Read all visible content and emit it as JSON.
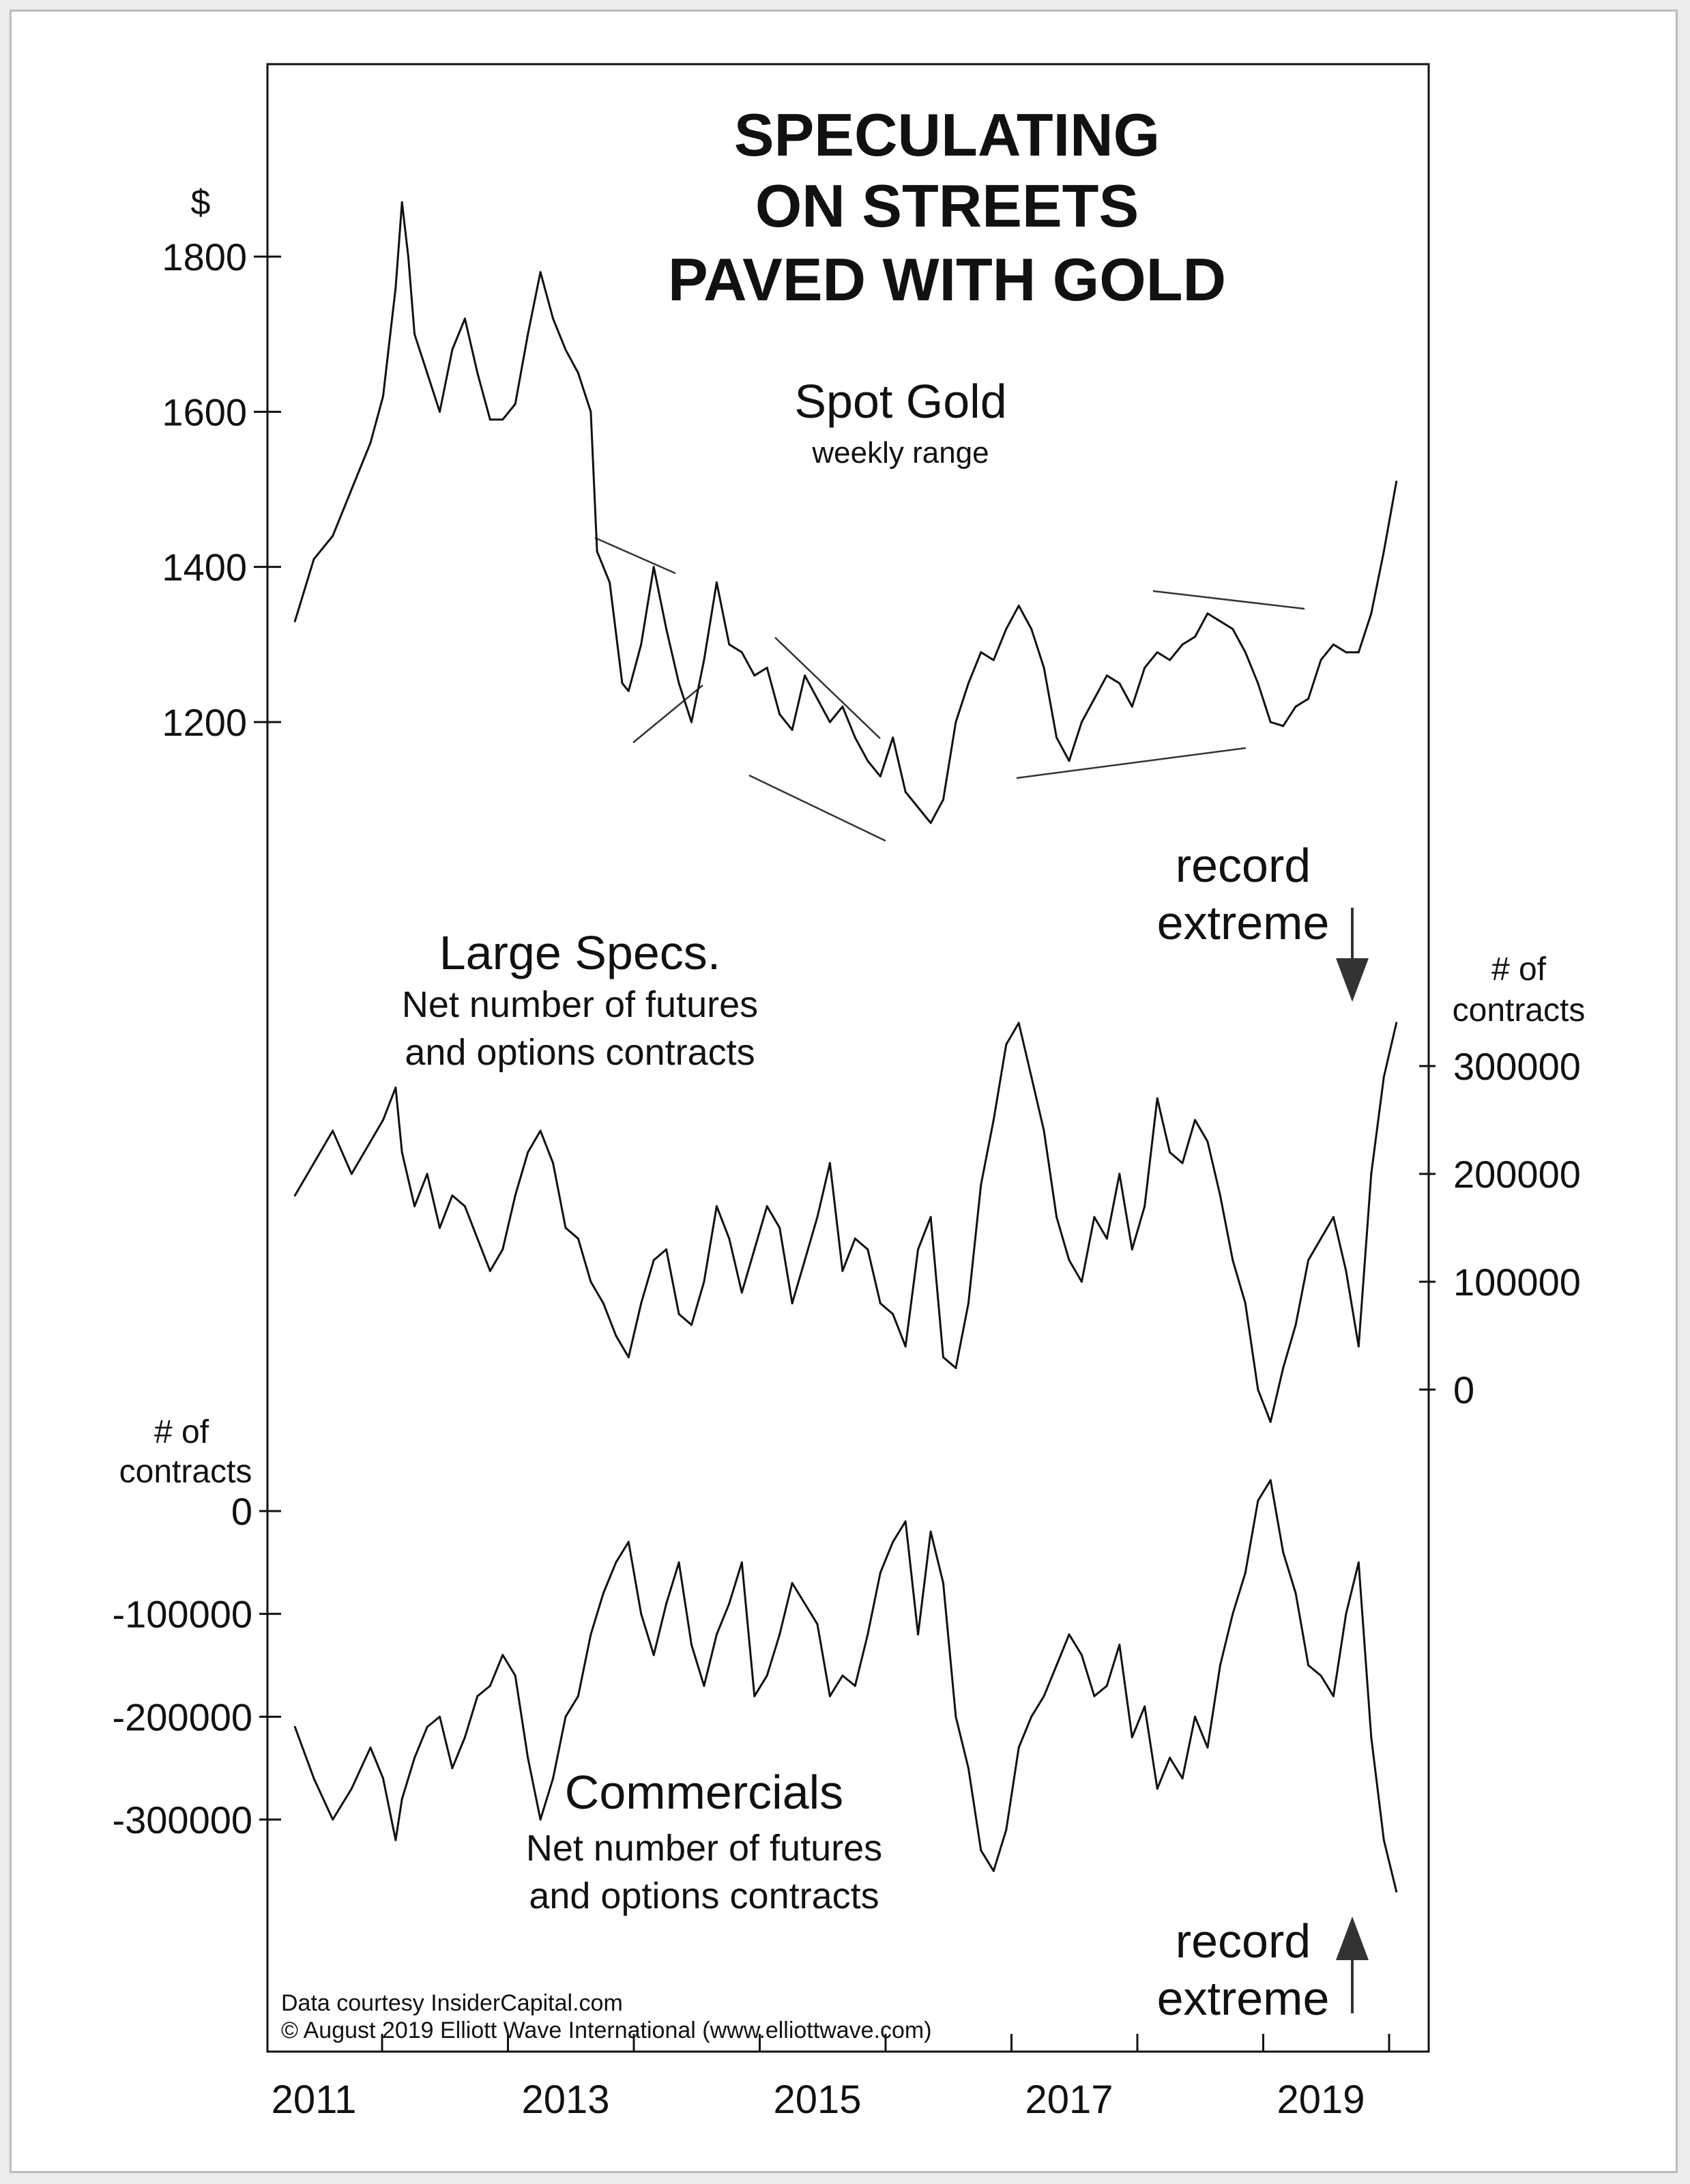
{
  "title_lines": [
    "SPECULATING",
    "ON STREETS",
    "PAVED WITH GOLD"
  ],
  "panels": {
    "gold": {
      "name": "Spot Gold",
      "subtitle": "weekly range",
      "unit": "$",
      "ticks": [
        1200,
        1400,
        1600,
        1800
      ]
    },
    "specs": {
      "name": "Large Specs.",
      "subtitle_lines": [
        "Net number of futures",
        "and options contracts"
      ],
      "unit_lines": [
        "# of",
        "contracts"
      ],
      "ticks": [
        0,
        100000,
        200000,
        300000
      ]
    },
    "commercials": {
      "name": "Commercials",
      "subtitle_lines": [
        "Net number of futures",
        "and options contracts"
      ],
      "unit_lines": [
        "# of",
        "contracts"
      ],
      "ticks": [
        0,
        -100000,
        -200000,
        -300000
      ]
    }
  },
  "annotations": {
    "record_top": [
      "record",
      "extreme"
    ],
    "record_bottom": [
      "record",
      "extreme"
    ]
  },
  "x_axis": {
    "labels": [
      "2011",
      "2013",
      "2015",
      "2017",
      "2019"
    ]
  },
  "credits": [
    "Data courtesy InsiderCapital.com",
    "© August 2019 Elliott Wave International (www.elliottwave.com)"
  ],
  "colors": {
    "line": "#111111",
    "frame": "#bcbcbc",
    "background": "#ffffff"
  },
  "chart_data": [
    {
      "type": "line",
      "title": "Spot Gold",
      "subtitle": "weekly range",
      "ylabel": "$",
      "ylim": [
        1050,
        1900
      ],
      "x": [
        2010.85,
        2011.0,
        2011.15,
        2011.3,
        2011.45,
        2011.55,
        2011.65,
        2011.7,
        2011.75,
        2011.8,
        2011.9,
        2012.0,
        2012.1,
        2012.2,
        2012.3,
        2012.4,
        2012.5,
        2012.6,
        2012.7,
        2012.8,
        2012.9,
        2013.0,
        2013.1,
        2013.2,
        2013.25,
        2013.35,
        2013.45,
        2013.5,
        2013.6,
        2013.7,
        2013.8,
        2013.9,
        2014.0,
        2014.1,
        2014.2,
        2014.3,
        2014.4,
        2014.5,
        2014.6,
        2014.7,
        2014.8,
        2014.9,
        2015.0,
        2015.1,
        2015.2,
        2015.3,
        2015.4,
        2015.5,
        2015.6,
        2015.7,
        2015.8,
        2015.9,
        2016.0,
        2016.1,
        2016.2,
        2016.3,
        2016.4,
        2016.5,
        2016.6,
        2016.7,
        2016.8,
        2016.9,
        2017.0,
        2017.1,
        2017.2,
        2017.3,
        2017.4,
        2017.5,
        2017.6,
        2017.7,
        2017.8,
        2017.9,
        2018.0,
        2018.1,
        2018.2,
        2018.3,
        2018.4,
        2018.5,
        2018.6,
        2018.7,
        2018.8,
        2018.9,
        2019.0,
        2019.1,
        2019.2,
        2019.3,
        2019.4,
        2019.5,
        2019.6
      ],
      "y": [
        1330,
        1410,
        1440,
        1500,
        1560,
        1620,
        1760,
        1870,
        1800,
        1700,
        1650,
        1600,
        1680,
        1720,
        1650,
        1590,
        1590,
        1610,
        1700,
        1780,
        1720,
        1680,
        1650,
        1600,
        1420,
        1380,
        1250,
        1240,
        1300,
        1400,
        1320,
        1250,
        1200,
        1280,
        1380,
        1300,
        1290,
        1260,
        1270,
        1210,
        1190,
        1260,
        1230,
        1200,
        1220,
        1180,
        1150,
        1130,
        1180,
        1110,
        1090,
        1070,
        1100,
        1200,
        1250,
        1290,
        1280,
        1320,
        1350,
        1320,
        1270,
        1180,
        1150,
        1200,
        1230,
        1260,
        1250,
        1220,
        1270,
        1290,
        1280,
        1300,
        1310,
        1340,
        1330,
        1320,
        1290,
        1250,
        1200,
        1195,
        1220,
        1230,
        1280,
        1300,
        1290,
        1290,
        1340,
        1420,
        1510
      ]
    },
    {
      "type": "line",
      "title": "Large Specs.",
      "subtitle": "Net number of futures and options contracts",
      "ylabel": "# of contracts",
      "ylim": [
        -50000,
        360000
      ],
      "x": [
        2010.85,
        2011.0,
        2011.15,
        2011.3,
        2011.45,
        2011.55,
        2011.65,
        2011.7,
        2011.8,
        2011.9,
        2012.0,
        2012.1,
        2012.2,
        2012.3,
        2012.4,
        2012.5,
        2012.6,
        2012.7,
        2012.8,
        2012.9,
        2013.0,
        2013.1,
        2013.2,
        2013.3,
        2013.4,
        2013.5,
        2013.6,
        2013.7,
        2013.8,
        2013.9,
        2014.0,
        2014.1,
        2014.2,
        2014.3,
        2014.4,
        2014.5,
        2014.6,
        2014.7,
        2014.8,
        2014.9,
        2015.0,
        2015.1,
        2015.2,
        2015.3,
        2015.4,
        2015.5,
        2015.6,
        2015.7,
        2015.8,
        2015.9,
        2016.0,
        2016.1,
        2016.2,
        2016.3,
        2016.4,
        2016.5,
        2016.6,
        2016.7,
        2016.8,
        2016.9,
        2017.0,
        2017.1,
        2017.2,
        2017.3,
        2017.4,
        2017.5,
        2017.6,
        2017.7,
        2017.8,
        2017.9,
        2018.0,
        2018.1,
        2018.2,
        2018.3,
        2018.4,
        2018.5,
        2018.6,
        2018.7,
        2018.8,
        2018.9,
        2019.0,
        2019.1,
        2019.2,
        2019.3,
        2019.4,
        2019.5,
        2019.6
      ],
      "y": [
        180000,
        210000,
        240000,
        200000,
        230000,
        250000,
        280000,
        220000,
        170000,
        200000,
        150000,
        180000,
        170000,
        140000,
        110000,
        130000,
        180000,
        220000,
        240000,
        210000,
        150000,
        140000,
        100000,
        80000,
        50000,
        30000,
        80000,
        120000,
        130000,
        70000,
        60000,
        100000,
        170000,
        140000,
        90000,
        130000,
        170000,
        150000,
        80000,
        120000,
        160000,
        210000,
        110000,
        140000,
        130000,
        80000,
        70000,
        40000,
        130000,
        160000,
        30000,
        20000,
        80000,
        190000,
        250000,
        320000,
        340000,
        290000,
        240000,
        160000,
        120000,
        100000,
        160000,
        140000,
        200000,
        130000,
        170000,
        270000,
        220000,
        210000,
        250000,
        230000,
        180000,
        120000,
        80000,
        0,
        -30000,
        20000,
        60000,
        120000,
        140000,
        160000,
        110000,
        40000,
        200000,
        290000,
        340000
      ]
    },
    {
      "type": "line",
      "title": "Commercials",
      "subtitle": "Net number of futures and options contracts",
      "ylabel": "# of contracts",
      "ylim": [
        -400000,
        40000
      ],
      "x": [
        2010.85,
        2011.0,
        2011.15,
        2011.3,
        2011.45,
        2011.55,
        2011.65,
        2011.7,
        2011.8,
        2011.9,
        2012.0,
        2012.1,
        2012.2,
        2012.3,
        2012.4,
        2012.5,
        2012.6,
        2012.7,
        2012.8,
        2012.9,
        2013.0,
        2013.1,
        2013.2,
        2013.3,
        2013.4,
        2013.5,
        2013.6,
        2013.7,
        2013.8,
        2013.9,
        2014.0,
        2014.1,
        2014.2,
        2014.3,
        2014.4,
        2014.5,
        2014.6,
        2014.7,
        2014.8,
        2014.9,
        2015.0,
        2015.1,
        2015.2,
        2015.3,
        2015.4,
        2015.5,
        2015.6,
        2015.7,
        2015.8,
        2015.9,
        2016.0,
        2016.1,
        2016.2,
        2016.3,
        2016.4,
        2016.5,
        2016.6,
        2016.7,
        2016.8,
        2016.9,
        2017.0,
        2017.1,
        2017.2,
        2017.3,
        2017.4,
        2017.5,
        2017.6,
        2017.7,
        2017.8,
        2017.9,
        2018.0,
        2018.1,
        2018.2,
        2018.3,
        2018.4,
        2018.5,
        2018.6,
        2018.7,
        2018.8,
        2018.9,
        2019.0,
        2019.1,
        2019.2,
        2019.3,
        2019.4,
        2019.5,
        2019.6
      ],
      "y": [
        -210000,
        -260000,
        -300000,
        -270000,
        -230000,
        -260000,
        -320000,
        -280000,
        -240000,
        -210000,
        -200000,
        -250000,
        -220000,
        -180000,
        -170000,
        -140000,
        -160000,
        -240000,
        -300000,
        -260000,
        -200000,
        -180000,
        -120000,
        -80000,
        -50000,
        -30000,
        -100000,
        -140000,
        -90000,
        -50000,
        -130000,
        -170000,
        -120000,
        -90000,
        -50000,
        -180000,
        -160000,
        -120000,
        -70000,
        -90000,
        -110000,
        -180000,
        -160000,
        -170000,
        -120000,
        -60000,
        -30000,
        -10000,
        -120000,
        -20000,
        -70000,
        -200000,
        -250000,
        -330000,
        -350000,
        -310000,
        -230000,
        -200000,
        -180000,
        -150000,
        -120000,
        -140000,
        -180000,
        -170000,
        -130000,
        -220000,
        -190000,
        -270000,
        -240000,
        -260000,
        -200000,
        -230000,
        -150000,
        -100000,
        -60000,
        10000,
        30000,
        -40000,
        -80000,
        -150000,
        -160000,
        -180000,
        -100000,
        -50000,
        -220000,
        -320000,
        -370000
      ]
    }
  ]
}
